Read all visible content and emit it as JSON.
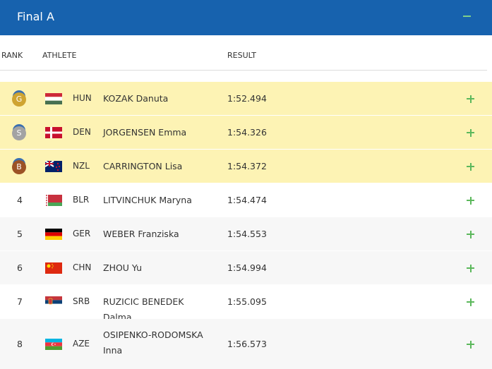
{
  "header": {
    "title": "Final A"
  },
  "table": {
    "columns": [
      "RANK",
      "ATHLETE",
      "RESULT"
    ],
    "rows": [
      {
        "rank": "G",
        "country": "HUN",
        "athlete": "KOZAK Danuta",
        "result": "1:52.494"
      },
      {
        "rank": "S",
        "country": "DEN",
        "athlete": "JORGENSEN Emma",
        "result": "1:54.326"
      },
      {
        "rank": "B",
        "country": "NZL",
        "athlete": "CARRINGTON Lisa",
        "result": "1:54.372"
      },
      {
        "rank": "4",
        "country": "BLR",
        "athlete": "LITVINCHUK Maryna",
        "result": "1:54.474"
      },
      {
        "rank": "5",
        "country": "GER",
        "athlete": "WEBER Franziska",
        "result": "1:54.553"
      },
      {
        "rank": "6",
        "country": "CHN",
        "athlete": "ZHOU Yu",
        "result": "1:54.994"
      },
      {
        "rank": "7",
        "country": "SRB",
        "athlete": "RUZICIC BENEDEK Dalma",
        "result": "1:55.095"
      },
      {
        "rank": "8",
        "country": "AZE",
        "athlete": "OSIPENKO-RODOMSKA Inna",
        "result": "1:56.573"
      }
    ]
  }
}
